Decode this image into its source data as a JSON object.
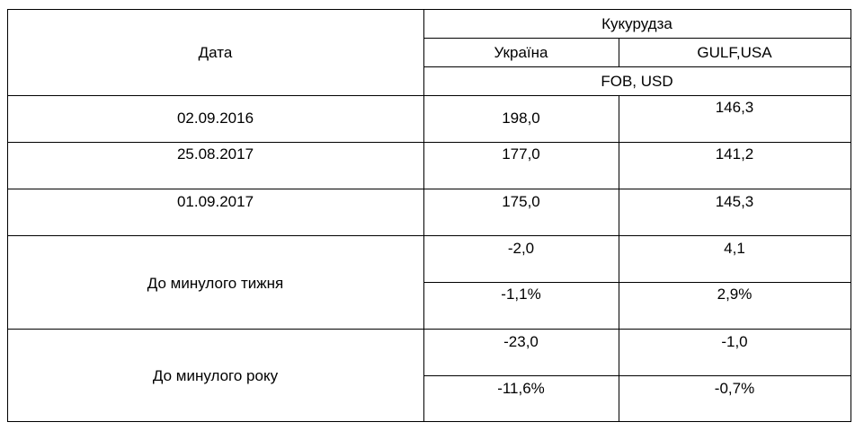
{
  "table": {
    "header": {
      "date": "Дата",
      "crop": "Кукурудза",
      "columns": [
        "Україна",
        "GULF,USA"
      ],
      "unit": "FOB, USD"
    },
    "rows": [
      [
        "02.09.2016",
        "198,0",
        "146,3"
      ],
      [
        "25.08.2017",
        "177,0",
        "141,2"
      ],
      [
        "01.09.2017",
        "175,0",
        "145,3"
      ]
    ],
    "changes": [
      {
        "label": "До минулого тижня",
        "values": [
          [
            "-2,0",
            "4,1"
          ],
          [
            "-1,1%",
            "2,9%"
          ]
        ]
      },
      {
        "label": "До минулого року",
        "values": [
          [
            "-23,0",
            "-1,0"
          ],
          [
            "-11,6%",
            "-0,7%"
          ]
        ]
      }
    ]
  }
}
